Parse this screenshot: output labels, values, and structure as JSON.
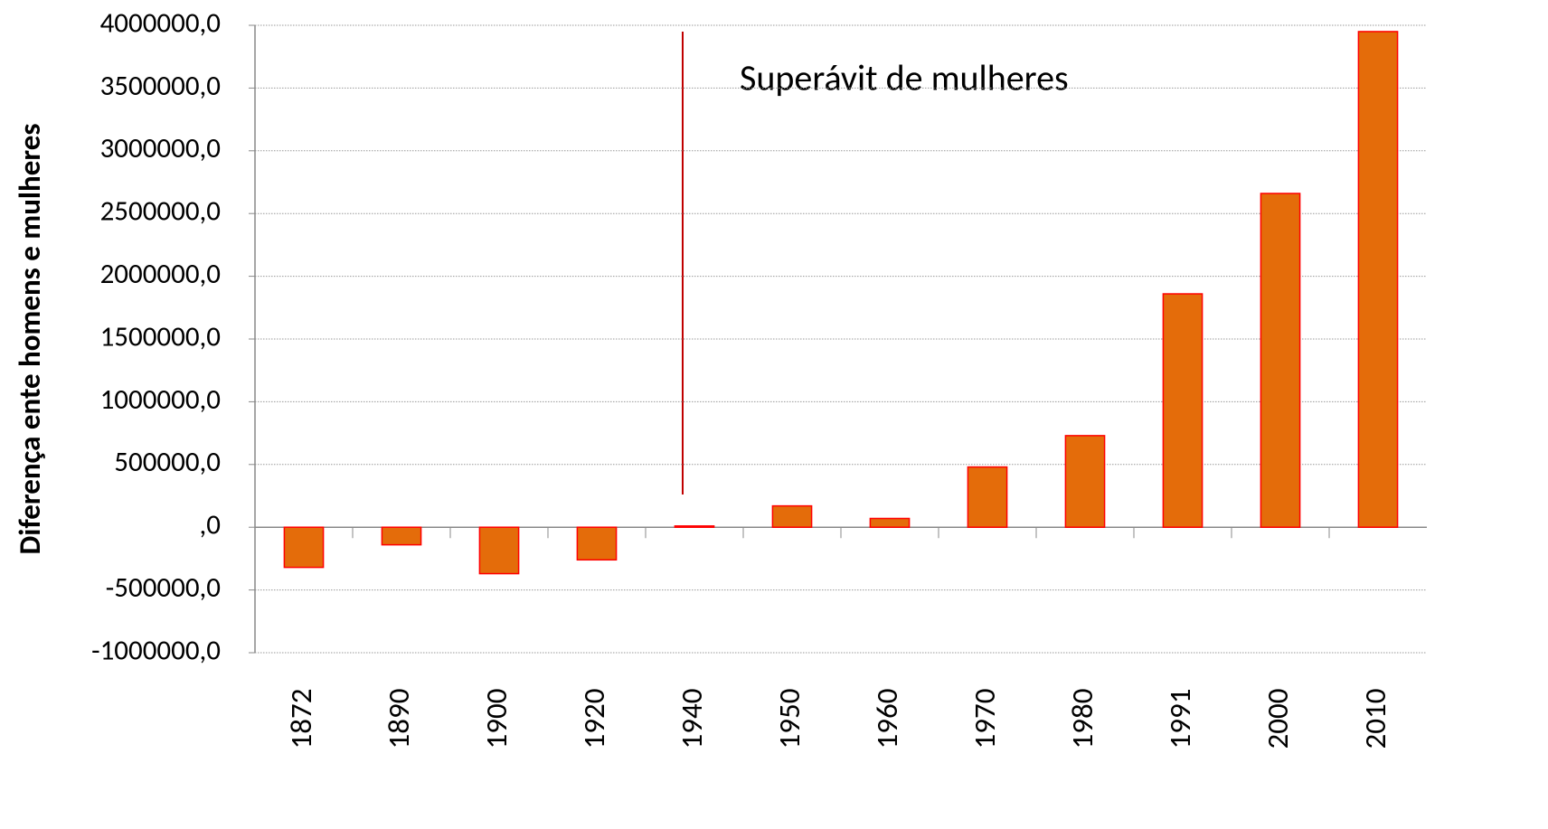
{
  "chart_data": {
    "type": "bar",
    "y_label": "Diferença ente homens e mulheres",
    "annotation": "Superávit de mulheres",
    "categories": [
      "1872",
      "1890",
      "1900",
      "1920",
      "1940",
      "1950",
      "1960",
      "1970",
      "1980",
      "1991",
      "2000",
      "2010"
    ],
    "values": [
      -320000,
      -140000,
      -370000,
      -260000,
      10000,
      170000,
      70000,
      480000,
      730000,
      1860000,
      2660000,
      3950000
    ],
    "color": "#e46c0a",
    "edge_color": "#ff0000",
    "ylim": [
      -1000000,
      4000000
    ],
    "yticks": [
      {
        "value": -1000000,
        "label": "-1000000,0"
      },
      {
        "value": -500000,
        "label": "-500000,0"
      },
      {
        "value": 0,
        "label": ",0"
      },
      {
        "value": 500000,
        "label": "500000,0"
      },
      {
        "value": 1000000,
        "label": "1000000,0"
      },
      {
        "value": 1500000,
        "label": "1500000,0"
      },
      {
        "value": 2000000,
        "label": "2000000,0"
      },
      {
        "value": 2500000,
        "label": "2500000,0"
      },
      {
        "value": 3000000,
        "label": "3000000,0"
      },
      {
        "value": 3500000,
        "label": "3500000,0"
      },
      {
        "value": 4000000,
        "label": "4000000,0"
      }
    ],
    "grid": true
  }
}
